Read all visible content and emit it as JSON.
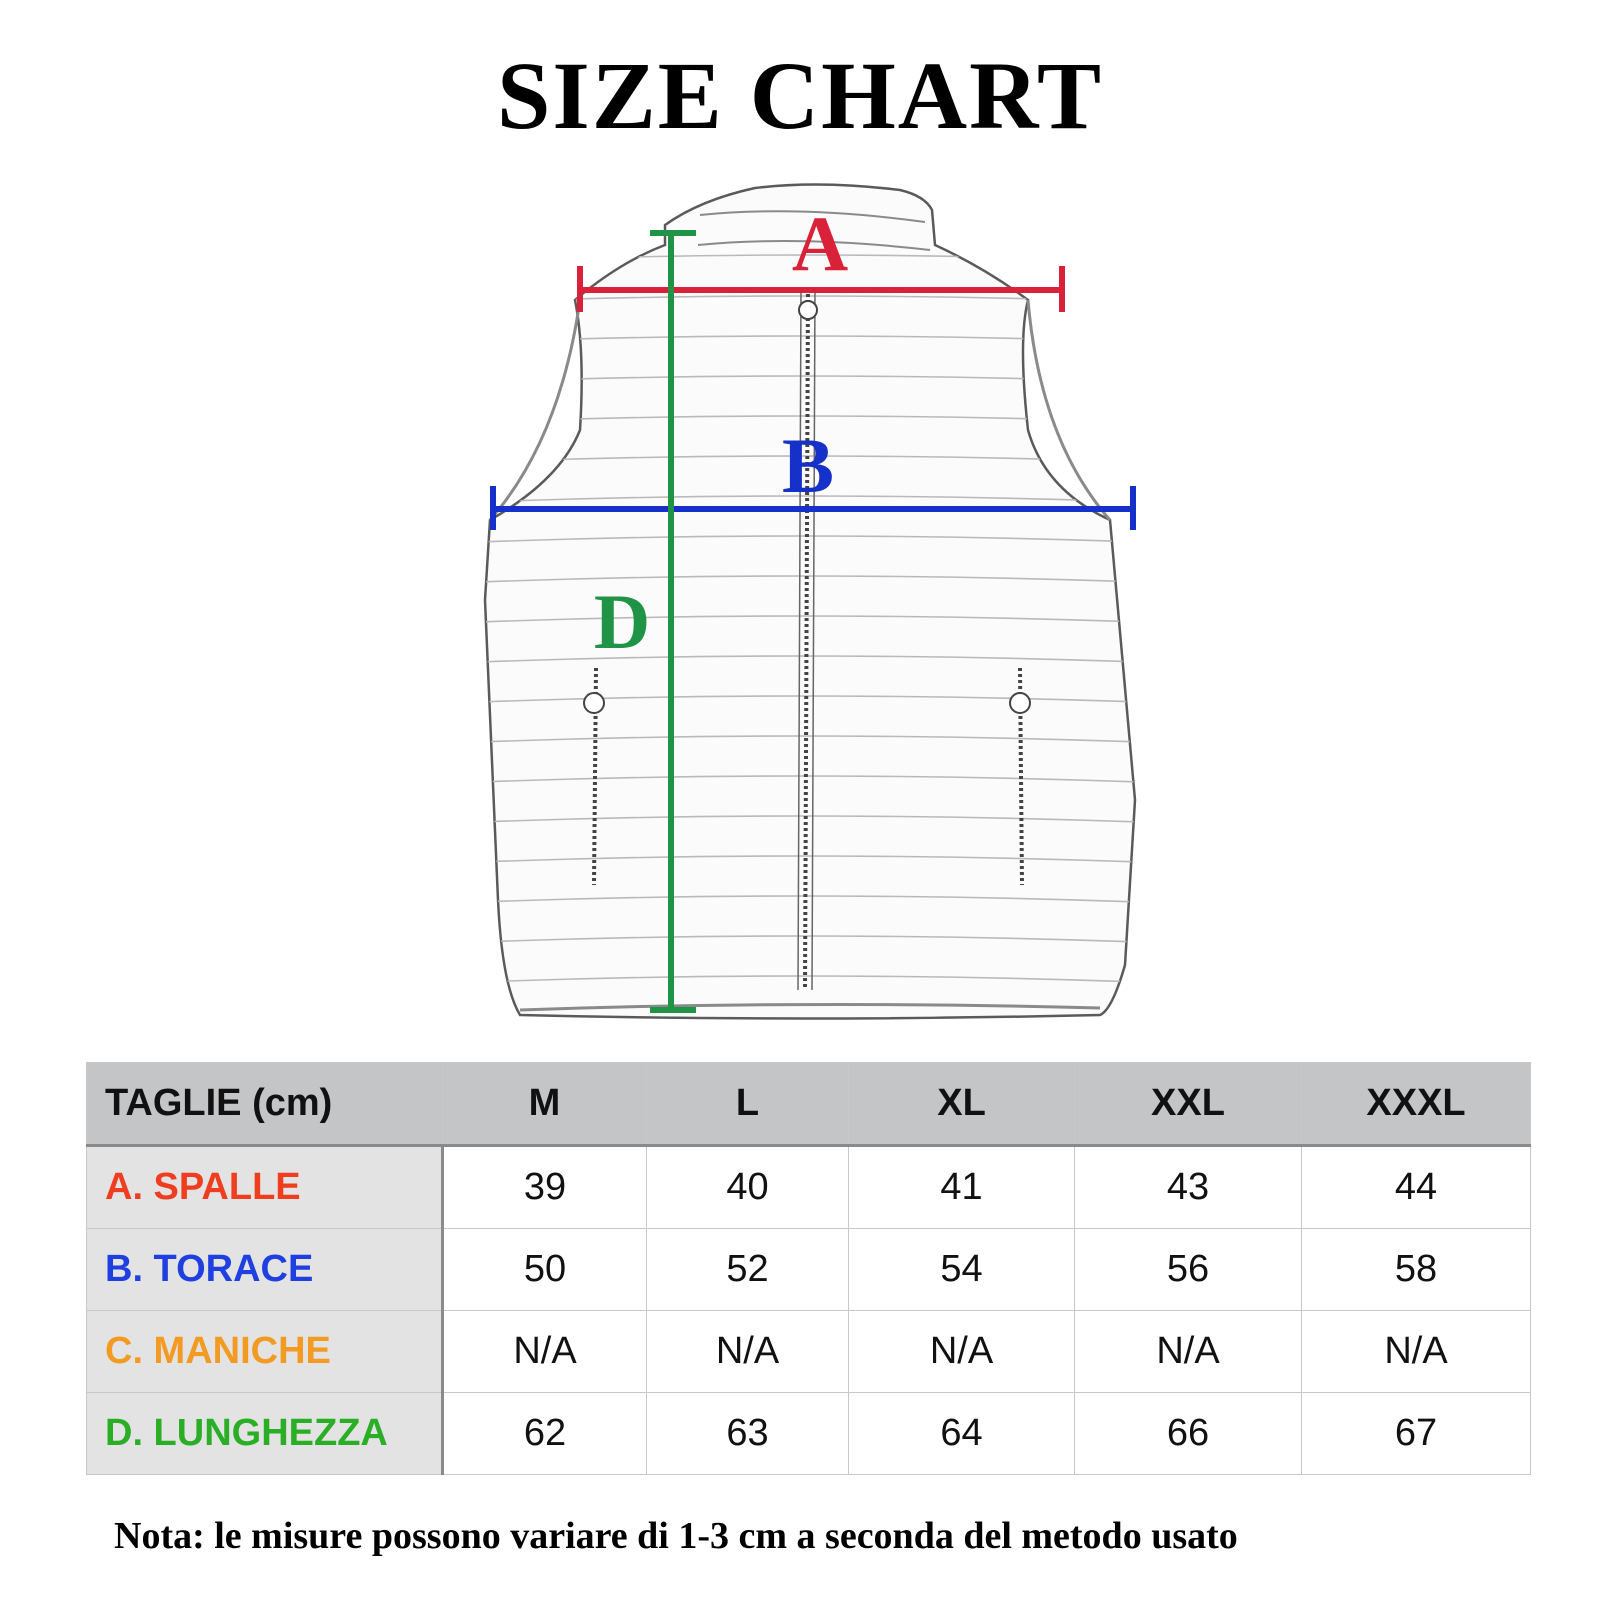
{
  "title": "SIZE CHART",
  "diagram": {
    "labels": {
      "a": "A",
      "b": "B",
      "d": "D"
    },
    "colors": {
      "a": "#d9213a",
      "b": "#1531c9",
      "d": "#1f9447"
    }
  },
  "table": {
    "corner": "TAGLIE (cm)",
    "sizes": [
      "M",
      "L",
      "XL",
      "XXL",
      "XXXL"
    ],
    "rows": [
      {
        "label": "A. SPALLE",
        "color": "#ee3d1f",
        "values": [
          "39",
          "40",
          "41",
          "43",
          "44"
        ]
      },
      {
        "label": "B. TORACE",
        "color": "#1f3fe0",
        "values": [
          "50",
          "52",
          "54",
          "56",
          "58"
        ]
      },
      {
        "label": "C. MANICHE",
        "color": "#f29a22",
        "values": [
          "N/A",
          "N/A",
          "N/A",
          "N/A",
          "N/A"
        ]
      },
      {
        "label": "D. LUNGHEZZA",
        "color": "#2aae26",
        "values": [
          "62",
          "63",
          "64",
          "66",
          "67"
        ]
      }
    ]
  },
  "note": "Nota: le misure possono variare di 1-3 cm a seconda del metodo usato"
}
